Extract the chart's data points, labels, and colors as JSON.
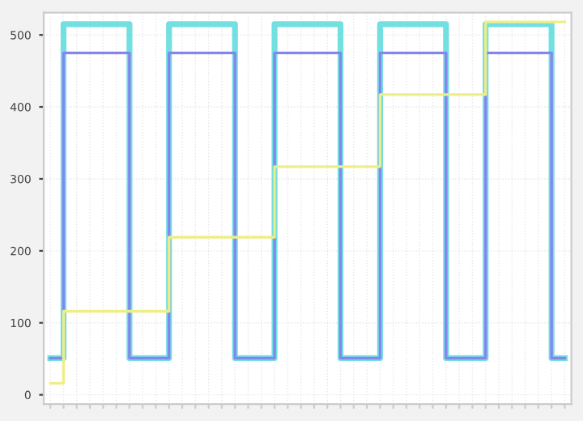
{
  "chart_data": {
    "type": "step",
    "categories": [
      null,
      null,
      null,
      null,
      null,
      null,
      null,
      null,
      null,
      null,
      null,
      null,
      null,
      null,
      null,
      null,
      null,
      null,
      null,
      null,
      null,
      null,
      null,
      null,
      null,
      null,
      null,
      null,
      null,
      null,
      null,
      null,
      null,
      null,
      null,
      null,
      null,
      null,
      null,
      null
    ],
    "series": [
      {
        "color": "#72dfe0",
        "values": [
          51,
          515,
          515,
          515,
          515,
          515,
          51,
          51,
          51,
          515,
          515,
          515,
          515,
          515,
          51,
          51,
          51,
          515,
          515,
          515,
          515,
          515,
          51,
          51,
          51,
          515,
          515,
          515,
          515,
          515,
          51,
          51,
          51,
          515,
          515,
          515,
          515,
          515,
          51,
          51
        ]
      },
      {
        "color": "#8585ef",
        "values": [
          51,
          475,
          475,
          475,
          475,
          475,
          51,
          51,
          51,
          475,
          475,
          475,
          475,
          475,
          51,
          51,
          51,
          475,
          475,
          475,
          475,
          475,
          51,
          51,
          51,
          475,
          475,
          475,
          475,
          475,
          51,
          51,
          51,
          475,
          475,
          475,
          475,
          475,
          51,
          51
        ]
      },
      {
        "color": "#eeee88",
        "values": [
          16,
          116,
          116,
          116,
          116,
          116,
          116,
          116,
          116,
          219,
          219,
          219,
          219,
          219,
          219,
          219,
          219,
          317,
          317,
          317,
          317,
          317,
          317,
          317,
          317,
          417,
          417,
          417,
          417,
          417,
          417,
          417,
          417,
          518,
          518,
          518,
          518,
          518,
          518,
          518
        ]
      }
    ],
    "ylim": [
      -13,
      531
    ],
    "yticks": [
      0,
      100,
      200,
      300,
      400,
      500
    ],
    "grid": true,
    "tick_labels": "y"
  }
}
